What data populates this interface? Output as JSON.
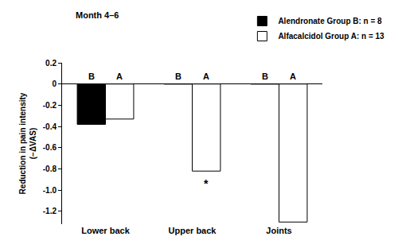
{
  "chart_data": {
    "type": "bar",
    "title": "Month 4–6",
    "ylabel": "Reduction in pain intensity (−ΔVAS)",
    "categories": [
      "Lower back",
      "Upper back",
      "Joints"
    ],
    "series": [
      {
        "name": "Alendronate Group B: n = 8",
        "color": "#000000",
        "values": [
          -0.38,
          0,
          0
        ]
      },
      {
        "name": "Alfacalcidol Group A: n = 13",
        "color": "#ffffff",
        "values": [
          -0.33,
          -0.82,
          -1.3
        ]
      }
    ],
    "ylim": [
      -1.32,
      0.2
    ],
    "yticks": [
      0.2,
      0,
      -0.2,
      -0.4,
      -0.6,
      -0.8,
      {
        "value": -1.0,
        "label": "-1.0"
      },
      -1.2
    ],
    "grid": false,
    "legend": "top right",
    "annotations": [
      {
        "text": "B",
        "category": "Lower back",
        "series": "Alendronate Group B: n = 8",
        "y": 0.07
      },
      {
        "text": "A",
        "category": "Lower back",
        "series": "Alfacalcidol Group A: n = 13",
        "y": 0.07
      },
      {
        "text": "B",
        "category": "Upper back",
        "series": "Alendronate Group B: n = 8",
        "y": 0.07
      },
      {
        "text": "A",
        "category": "Upper back",
        "series": "Alfacalcidol Group A: n = 13",
        "y": 0.07
      },
      {
        "text": "B",
        "category": "Joints",
        "series": "Alendronate Group B: n = 8",
        "y": 0.07
      },
      {
        "text": "A",
        "category": "Joints",
        "series": "Alfacalcidol Group A: n = 13",
        "y": 0.07
      },
      {
        "text": "*",
        "category": "Upper back",
        "series": "Alfacalcidol Group A: n = 13",
        "y": -0.86
      }
    ]
  }
}
